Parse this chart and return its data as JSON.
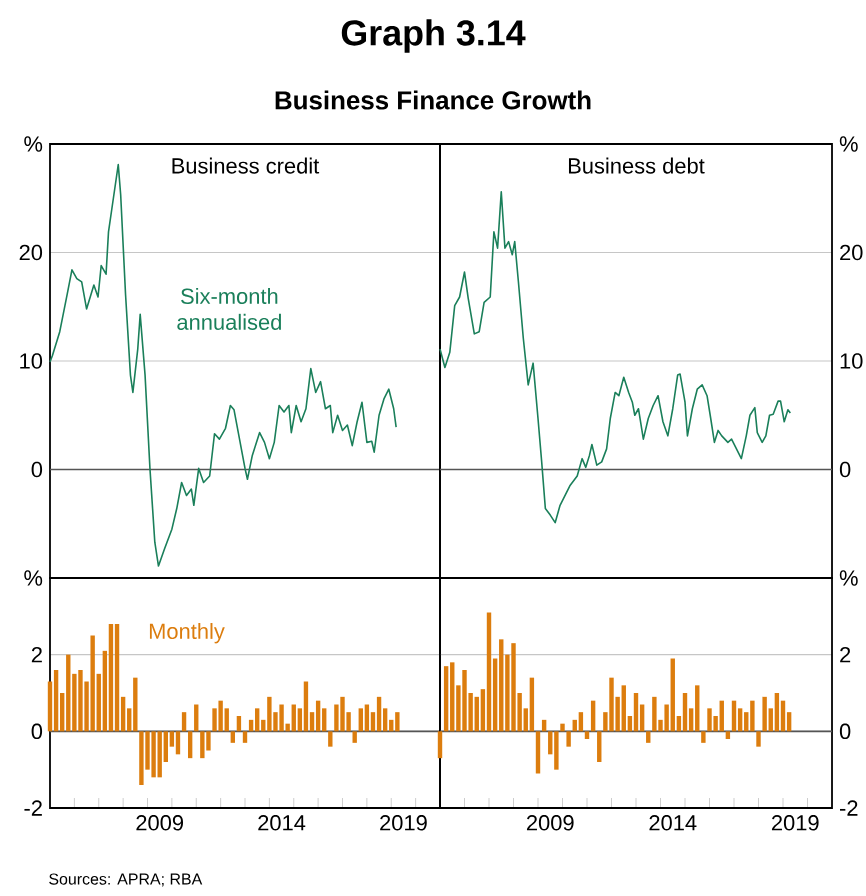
{
  "chart_data": [
    {
      "type": "line",
      "title": "Business credit",
      "annotations": [
        "Graph 3.14",
        "Business Finance Growth"
      ],
      "xlim": [
        2005,
        2021
      ],
      "ylim": [
        -10,
        30
      ],
      "yticks": [
        0,
        10,
        20,
        {
          "value": 30,
          "label": "%"
        }
      ],
      "grid": "y",
      "tick_labels": "y",
      "ref_lines": [
        {
          "axis": "y",
          "value": 0,
          "color": "#555555"
        }
      ],
      "series": [
        {
          "name": "Six-month annualised",
          "color": "#1a7f5a",
          "x": [
            2005.0,
            2005.1,
            2005.4,
            2005.7,
            2005.9,
            2006.1,
            2006.3,
            2006.5,
            2006.8,
            2006.97,
            2007.1,
            2007.3,
            2007.4,
            2007.6,
            2007.8,
            2007.9,
            2008.1,
            2008.3,
            2008.4,
            2008.6,
            2008.7,
            2008.9,
            2009.1,
            2009.3,
            2009.45,
            2009.7,
            2010.0,
            2010.2,
            2010.4,
            2010.6,
            2010.8,
            2010.9,
            2011.1,
            2011.3,
            2011.55,
            2011.75,
            2011.95,
            2012.2,
            2012.4,
            2012.55,
            2012.8,
            2013.0,
            2013.1,
            2013.3,
            2013.6,
            2013.8,
            2014.0,
            2014.2,
            2014.4,
            2014.6,
            2014.8,
            2014.9,
            2015.1,
            2015.3,
            2015.5,
            2015.7,
            2015.9,
            2016.1,
            2016.3,
            2016.5,
            2016.6,
            2016.8,
            2017.0,
            2017.2,
            2017.4,
            2017.6,
            2017.8,
            2018.0,
            2018.2,
            2018.3,
            2018.5,
            2018.7,
            2018.9,
            2019.1,
            2019.2
          ],
          "values": [
            9.9,
            10.5,
            12.7,
            16.1,
            18.4,
            17.6,
            17.3,
            14.8,
            17.0,
            15.9,
            18.8,
            18.0,
            21.9,
            25.0,
            28.1,
            25.3,
            16.1,
            8.7,
            7.1,
            11.1,
            14.3,
            8.7,
            0.1,
            -6.7,
            -8.9,
            -7.3,
            -5.5,
            -3.6,
            -1.2,
            -2.4,
            -1.8,
            -3.3,
            0.1,
            -1.2,
            -0.6,
            3.3,
            2.8,
            3.8,
            5.9,
            5.5,
            2.5,
            0.1,
            -0.9,
            1.3,
            3.4,
            2.5,
            1.0,
            2.5,
            5.9,
            5.3,
            5.9,
            3.4,
            5.9,
            4.4,
            5.6,
            9.3,
            7.1,
            8.1,
            5.6,
            5.9,
            3.4,
            5.0,
            3.6,
            4.1,
            2.2,
            4.4,
            6.2,
            2.5,
            2.6,
            1.6,
            5.0,
            6.5,
            7.4,
            5.6,
            3.9
          ]
        }
      ]
    },
    {
      "type": "line",
      "title": "Business debt",
      "xlim": [
        2005,
        2021
      ],
      "y2lim": [
        -10,
        30
      ],
      "y2ticks": [
        0,
        10,
        20,
        {
          "value": 30,
          "label": "%"
        }
      ],
      "grid": "y",
      "tick_labels": "y",
      "ref_lines": [
        {
          "axis": "y2",
          "value": 0,
          "color": "#555555"
        }
      ],
      "series": [
        {
          "color": "#1a7f5a",
          "axis": "y2",
          "x": [
            2005.0,
            2005.2,
            2005.4,
            2005.6,
            2005.8,
            2006.0,
            2006.15,
            2006.4,
            2006.6,
            2006.8,
            2007.05,
            2007.2,
            2007.35,
            2007.5,
            2007.65,
            2007.8,
            2007.95,
            2008.05,
            2008.2,
            2008.4,
            2008.6,
            2008.8,
            2009.0,
            2009.15,
            2009.3,
            2009.5,
            2009.7,
            2009.9,
            2010.1,
            2010.3,
            2010.6,
            2010.8,
            2010.95,
            2011.1,
            2011.2,
            2011.4,
            2011.6,
            2011.8,
            2011.95,
            2012.15,
            2012.3,
            2012.5,
            2012.7,
            2012.85,
            2012.95,
            2013.1,
            2013.3,
            2013.5,
            2013.7,
            2013.9,
            2014.1,
            2014.3,
            2014.5,
            2014.7,
            2014.8,
            2015.0,
            2015.1,
            2015.3,
            2015.5,
            2015.7,
            2015.9,
            2016.05,
            2016.2,
            2016.35,
            2016.5,
            2016.75,
            2016.9,
            2017.1,
            2017.3,
            2017.5,
            2017.65,
            2017.85,
            2017.95,
            2018.15,
            2018.3,
            2018.45,
            2018.6,
            2018.8,
            2018.9,
            2019.05,
            2019.2,
            2019.3
          ],
          "values": [
            11.1,
            9.4,
            10.8,
            15.1,
            15.9,
            18.2,
            15.8,
            12.5,
            12.7,
            15.4,
            15.9,
            21.9,
            20.4,
            25.6,
            20.4,
            21.0,
            19.8,
            21.0,
            17.3,
            12.1,
            7.8,
            9.8,
            4.7,
            0.7,
            -3.6,
            -4.2,
            -4.9,
            -3.3,
            -2.4,
            -1.5,
            -0.6,
            1.0,
            0.2,
            1.3,
            2.3,
            0.4,
            0.7,
            1.9,
            4.7,
            7.1,
            6.8,
            8.5,
            7.1,
            6.2,
            5.0,
            5.6,
            2.8,
            4.7,
            5.9,
            6.8,
            4.4,
            3.1,
            5.6,
            8.7,
            8.8,
            6.2,
            3.1,
            5.6,
            7.4,
            7.8,
            6.8,
            4.7,
            2.5,
            3.6,
            3.1,
            2.5,
            2.8,
            1.9,
            1.0,
            3.1,
            5.0,
            5.7,
            3.4,
            2.5,
            3.1,
            5.0,
            5.1,
            6.3,
            6.3,
            4.4,
            5.5,
            5.2
          ]
        }
      ]
    },
    {
      "type": "bar",
      "annotations": [
        "Sources: APRA; RBA"
      ],
      "xlim": [
        2005,
        2021
      ],
      "xticks": [
        {
          "value": 2006,
          "label": null
        },
        {
          "value": 2007,
          "label": null
        },
        {
          "value": 2008,
          "label": null
        },
        {
          "value": 2009,
          "label": null
        },
        {
          "value": 2009.5,
          "label": "2009"
        },
        {
          "value": 2010,
          "label": null
        },
        {
          "value": 2011,
          "label": null
        },
        {
          "value": 2012,
          "label": null
        },
        {
          "value": 2013,
          "label": null
        },
        {
          "value": 2014,
          "label": null
        },
        {
          "value": 2014.5,
          "label": "2014"
        },
        {
          "value": 2015,
          "label": null
        },
        {
          "value": 2016,
          "label": null
        },
        {
          "value": 2017,
          "label": null
        },
        {
          "value": 2018,
          "label": null
        },
        {
          "value": 2019,
          "label": null
        },
        {
          "value": 2019.5,
          "label": "2019"
        },
        {
          "value": 2020,
          "label": null
        }
      ],
      "ylim": [
        -2,
        4
      ],
      "yticks": [
        -2,
        0,
        2,
        {
          "value": 4,
          "label": "%"
        }
      ],
      "grid": "y",
      "ref_lines": [
        {
          "axis": "y",
          "value": 0,
          "color": "#555555"
        }
      ],
      "x": [
        2005.0,
        2005.25,
        2005.5,
        2005.75,
        2006.0,
        2006.25,
        2006.5,
        2006.75,
        2007.0,
        2007.25,
        2007.5,
        2007.75,
        2008.0,
        2008.25,
        2008.5,
        2008.75,
        2009.0,
        2009.25,
        2009.5,
        2009.75,
        2010.0,
        2010.25,
        2010.5,
        2010.75,
        2011.0,
        2011.25,
        2011.5,
        2011.75,
        2012.0,
        2012.25,
        2012.5,
        2012.75,
        2013.0,
        2013.25,
        2013.5,
        2013.75,
        2014.0,
        2014.25,
        2014.5,
        2014.75,
        2015.0,
        2015.25,
        2015.5,
        2015.75,
        2016.0,
        2016.25,
        2016.5,
        2016.75,
        2017.0,
        2017.25,
        2017.5,
        2017.75,
        2018.0,
        2018.25,
        2018.5,
        2018.75,
        2019.0,
        2019.25
      ],
      "series": [
        {
          "name": "Monthly",
          "color": "#dc7d0e",
          "values": [
            1.3,
            1.6,
            1.0,
            2.0,
            1.5,
            1.6,
            1.3,
            2.5,
            1.5,
            2.1,
            2.8,
            2.8,
            0.9,
            0.6,
            1.4,
            -1.4,
            -1.0,
            -1.2,
            -1.2,
            -0.8,
            -0.4,
            -0.6,
            0.5,
            -0.7,
            0.7,
            -0.7,
            -0.5,
            0.6,
            0.8,
            0.6,
            -0.3,
            0.4,
            -0.3,
            0.3,
            0.6,
            0.3,
            0.9,
            0.5,
            0.7,
            0.2,
            0.7,
            0.6,
            1.3,
            0.5,
            0.8,
            0.6,
            -0.4,
            0.7,
            0.9,
            0.5,
            -0.3,
            0.6,
            0.7,
            0.5,
            0.9,
            0.6,
            0.3,
            0.5
          ]
        }
      ]
    },
    {
      "type": "bar",
      "xlim": [
        2005,
        2021
      ],
      "xticks": [
        {
          "value": 2006,
          "label": null
        },
        {
          "value": 2007,
          "label": null
        },
        {
          "value": 2008,
          "label": null
        },
        {
          "value": 2009,
          "label": null
        },
        {
          "value": 2009.5,
          "label": "2009"
        },
        {
          "value": 2010,
          "label": null
        },
        {
          "value": 2011,
          "label": null
        },
        {
          "value": 2012,
          "label": null
        },
        {
          "value": 2013,
          "label": null
        },
        {
          "value": 2014,
          "label": null
        },
        {
          "value": 2014.5,
          "label": "2014"
        },
        {
          "value": 2015,
          "label": null
        },
        {
          "value": 2016,
          "label": null
        },
        {
          "value": 2017,
          "label": null
        },
        {
          "value": 2018,
          "label": null
        },
        {
          "value": 2019,
          "label": null
        },
        {
          "value": 2019.5,
          "label": "2019"
        },
        {
          "value": 2020,
          "label": null
        }
      ],
      "y2lim": [
        -2,
        4
      ],
      "y2ticks": [
        -2,
        0,
        2,
        {
          "value": 4,
          "label": "%"
        }
      ],
      "grid": "y",
      "ref_lines": [
        {
          "axis": "y2",
          "value": 0,
          "color": "#555555"
        }
      ],
      "x": [
        2005.0,
        2005.25,
        2005.5,
        2005.75,
        2006.0,
        2006.25,
        2006.5,
        2006.75,
        2007.0,
        2007.25,
        2007.5,
        2007.75,
        2008.0,
        2008.25,
        2008.5,
        2008.75,
        2009.0,
        2009.25,
        2009.5,
        2009.75,
        2010.0,
        2010.25,
        2010.5,
        2010.75,
        2011.0,
        2011.25,
        2011.5,
        2011.75,
        2012.0,
        2012.25,
        2012.5,
        2012.75,
        2013.0,
        2013.25,
        2013.5,
        2013.75,
        2014.0,
        2014.25,
        2014.5,
        2014.75,
        2015.0,
        2015.25,
        2015.5,
        2015.75,
        2016.0,
        2016.25,
        2016.5,
        2016.75,
        2017.0,
        2017.25,
        2017.5,
        2017.75,
        2018.0,
        2018.25,
        2018.5,
        2018.75,
        2019.0,
        2019.25
      ],
      "series": [
        {
          "color": "#dc7d0e",
          "axis": "y2",
          "values": [
            -0.7,
            1.7,
            1.8,
            1.2,
            1.6,
            1.0,
            0.9,
            1.1,
            3.1,
            1.9,
            2.4,
            2.0,
            2.3,
            1.0,
            0.6,
            1.4,
            -1.1,
            0.3,
            -0.6,
            -1.0,
            0.2,
            -0.4,
            0.3,
            0.5,
            -0.2,
            0.8,
            -0.8,
            0.5,
            1.4,
            0.9,
            1.2,
            0.4,
            1.0,
            0.7,
            -0.3,
            0.9,
            0.3,
            0.7,
            1.9,
            0.4,
            1.0,
            0.6,
            1.2,
            -0.3,
            0.6,
            0.4,
            0.8,
            -0.2,
            0.8,
            0.6,
            0.5,
            0.8,
            -0.4,
            0.9,
            0.6,
            1.0,
            0.8,
            0.5
          ]
        }
      ]
    }
  ]
}
